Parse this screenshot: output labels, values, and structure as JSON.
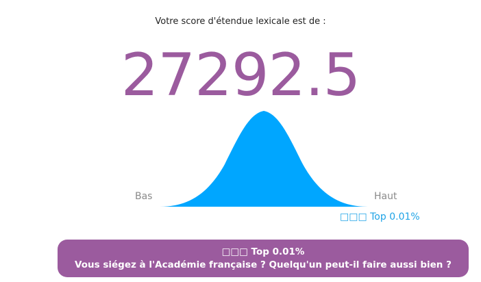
{
  "result": {
    "intro": "Votre score d'étendue lexicale est de :",
    "score": "27292.5",
    "low_label": "Bas",
    "high_label": "Haut",
    "rank_label": "□□□ Top 0.01%"
  },
  "banner": {
    "line1": "□□□ Top 0.01%",
    "line2": "Vous siégez à l'Académie française ? Quelqu'un peut-il faire aussi bien ?"
  },
  "colors": {
    "accent": "#9b5b9e",
    "curve": "#00a6ff",
    "rank": "#1ea3e6"
  },
  "icons": {
    "distribution": "bell-curve-icon"
  }
}
